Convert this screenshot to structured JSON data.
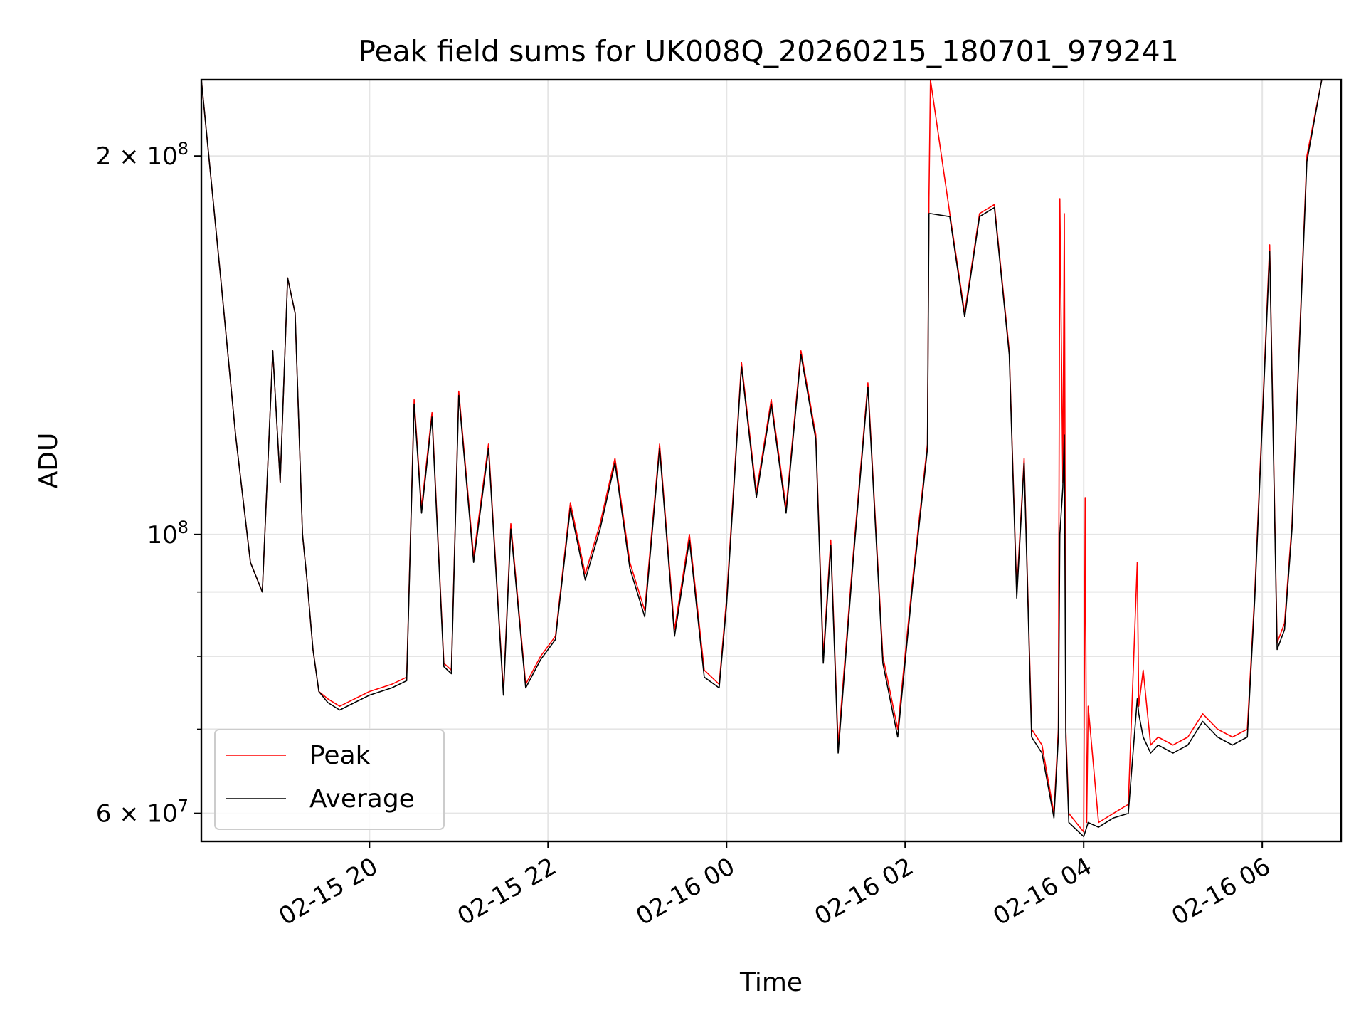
{
  "chart_data": {
    "type": "line",
    "title": "Peak field sums for UK008Q_20260215_180701_979241",
    "xlabel": "Time",
    "ylabel": "ADU",
    "y_scale": "log",
    "ylim": [
      57000000,
      230000000
    ],
    "xlim": [
      "2026-02-15 18:07",
      "2026-02-16 06:53"
    ],
    "grid": true,
    "legend_position": "lower-left",
    "x_ticks": [
      {
        "time": "2026-02-15 20:00",
        "label": "02-15 20"
      },
      {
        "time": "2026-02-15 22:00",
        "label": "02-15 22"
      },
      {
        "time": "2026-02-16 00:00",
        "label": "02-16 00"
      },
      {
        "time": "2026-02-16 02:00",
        "label": "02-16 02"
      },
      {
        "time": "2026-02-16 04:00",
        "label": "02-16 04"
      },
      {
        "time": "2026-02-16 06:00",
        "label": "02-16 06"
      }
    ],
    "y_ticks": [
      {
        "value": 60000000,
        "label": "6 × 10^7",
        "mantissa": "6",
        "exponent": "7"
      },
      {
        "value": 100000000,
        "label": "10^8",
        "mantissa": "",
        "exponent": "8"
      },
      {
        "value": 200000000,
        "label": "2 × 10^8",
        "mantissa": "2",
        "exponent": "8"
      }
    ],
    "y_minor_gridlines": [
      70000000,
      80000000,
      90000000
    ],
    "series": [
      {
        "name": "Peak",
        "color": "#ff0000",
        "time": [
          "2026-02-15 18:07",
          "2026-02-15 18:20",
          "2026-02-15 18:30",
          "2026-02-15 18:40",
          "2026-02-15 18:48",
          "2026-02-15 18:55",
          "2026-02-15 19:00",
          "2026-02-15 19:05",
          "2026-02-15 19:10",
          "2026-02-15 19:15",
          "2026-02-15 19:18",
          "2026-02-15 19:22",
          "2026-02-15 19:26",
          "2026-02-15 19:32",
          "2026-02-15 19:40",
          "2026-02-15 19:50",
          "2026-02-15 20:00",
          "2026-02-15 20:15",
          "2026-02-15 20:25",
          "2026-02-15 20:30",
          "2026-02-15 20:35",
          "2026-02-15 20:42",
          "2026-02-15 20:50",
          "2026-02-15 20:55",
          "2026-02-15 21:00",
          "2026-02-15 21:10",
          "2026-02-15 21:20",
          "2026-02-15 21:30",
          "2026-02-15 21:35",
          "2026-02-15 21:45",
          "2026-02-15 21:55",
          "2026-02-15 22:05",
          "2026-02-15 22:15",
          "2026-02-15 22:25",
          "2026-02-15 22:35",
          "2026-02-15 22:45",
          "2026-02-15 22:55",
          "2026-02-15 23:05",
          "2026-02-15 23:15",
          "2026-02-15 23:25",
          "2026-02-15 23:35",
          "2026-02-15 23:45",
          "2026-02-15 23:55",
          "2026-02-16 00:00",
          "2026-02-16 00:10",
          "2026-02-16 00:20",
          "2026-02-16 00:30",
          "2026-02-16 00:40",
          "2026-02-16 00:50",
          "2026-02-16 01:00",
          "2026-02-16 01:05",
          "2026-02-16 01:10",
          "2026-02-16 01:15",
          "2026-02-16 01:25",
          "2026-02-16 01:35",
          "2026-02-16 01:45",
          "2026-02-16 01:55",
          "2026-02-16 02:05",
          "2026-02-16 02:15",
          "2026-02-16 02:16",
          "2026-02-16 02:17",
          "2026-02-16 02:30",
          "2026-02-16 02:40",
          "2026-02-16 02:50",
          "2026-02-16 03:00",
          "2026-02-16 03:10",
          "2026-02-16 03:15",
          "2026-02-16 03:20",
          "2026-02-16 03:25",
          "2026-02-16 03:32",
          "2026-02-16 03:40",
          "2026-02-16 03:43",
          "2026-02-16 03:44",
          "2026-02-16 03:46",
          "2026-02-16 03:47",
          "2026-02-16 03:48",
          "2026-02-16 03:50",
          "2026-02-16 04:00",
          "2026-02-16 04:01",
          "2026-02-16 04:02",
          "2026-02-16 04:03",
          "2026-02-16 04:10",
          "2026-02-16 04:20",
          "2026-02-16 04:30",
          "2026-02-16 04:36",
          "2026-02-16 04:37",
          "2026-02-16 04:40",
          "2026-02-16 04:45",
          "2026-02-16 04:50",
          "2026-02-16 05:00",
          "2026-02-16 05:10",
          "2026-02-16 05:20",
          "2026-02-16 05:30",
          "2026-02-16 05:40",
          "2026-02-16 05:50",
          "2026-02-16 05:55",
          "2026-02-16 06:05",
          "2026-02-16 06:10",
          "2026-02-16 06:15",
          "2026-02-16 06:20",
          "2026-02-16 06:30",
          "2026-02-16 06:40",
          "2026-02-16 06:53"
        ],
        "values": [
          230000000,
          160000000,
          120000000,
          95000000,
          90000000,
          140000000,
          110000000,
          160000000,
          150000000,
          100000000,
          92000000,
          81000000,
          75000000,
          74000000,
          73000000,
          74000000,
          75000000,
          76000000,
          77000000,
          128000000,
          105000000,
          125000000,
          79000000,
          78000000,
          130000000,
          96000000,
          118000000,
          75000000,
          102000000,
          76000000,
          80000000,
          83000000,
          106000000,
          93000000,
          102000000,
          115000000,
          95000000,
          87000000,
          118000000,
          84000000,
          100000000,
          78000000,
          76000000,
          89000000,
          137000000,
          108000000,
          128000000,
          105000000,
          140000000,
          120000000,
          80000000,
          99000000,
          68000000,
          96000000,
          132000000,
          80000000,
          70000000,
          92000000,
          118000000,
          185000000,
          230000000,
          180000000,
          150000000,
          180000000,
          183000000,
          140000000,
          90000000,
          115000000,
          70000000,
          68000000,
          60000000,
          70000000,
          185000000,
          110000000,
          180000000,
          70000000,
          60000000,
          58000000,
          107000000,
          59000000,
          73000000,
          59000000,
          60000000,
          61000000,
          95000000,
          73000000,
          78000000,
          68000000,
          69000000,
          68000000,
          69000000,
          72000000,
          70000000,
          69000000,
          70000000,
          90000000,
          170000000,
          82000000,
          85000000,
          102000000,
          200000000,
          230000000,
          230000000
        ]
      },
      {
        "name": "Average",
        "color": "#000000",
        "time": [
          "2026-02-15 18:07",
          "2026-02-15 18:20",
          "2026-02-15 18:30",
          "2026-02-15 18:40",
          "2026-02-15 18:48",
          "2026-02-15 18:55",
          "2026-02-15 19:00",
          "2026-02-15 19:05",
          "2026-02-15 19:10",
          "2026-02-15 19:15",
          "2026-02-15 19:18",
          "2026-02-15 19:22",
          "2026-02-15 19:26",
          "2026-02-15 19:32",
          "2026-02-15 19:40",
          "2026-02-15 19:50",
          "2026-02-15 20:00",
          "2026-02-15 20:15",
          "2026-02-15 20:25",
          "2026-02-15 20:30",
          "2026-02-15 20:35",
          "2026-02-15 20:42",
          "2026-02-15 20:50",
          "2026-02-15 20:55",
          "2026-02-15 21:00",
          "2026-02-15 21:10",
          "2026-02-15 21:20",
          "2026-02-15 21:30",
          "2026-02-15 21:35",
          "2026-02-15 21:45",
          "2026-02-15 21:55",
          "2026-02-15 22:05",
          "2026-02-15 22:15",
          "2026-02-15 22:25",
          "2026-02-15 22:35",
          "2026-02-15 22:45",
          "2026-02-15 22:55",
          "2026-02-15 23:05",
          "2026-02-15 23:15",
          "2026-02-15 23:25",
          "2026-02-15 23:35",
          "2026-02-15 23:45",
          "2026-02-15 23:55",
          "2026-02-16 00:00",
          "2026-02-16 00:10",
          "2026-02-16 00:20",
          "2026-02-16 00:30",
          "2026-02-16 00:40",
          "2026-02-16 00:50",
          "2026-02-16 01:00",
          "2026-02-16 01:05",
          "2026-02-16 01:10",
          "2026-02-16 01:15",
          "2026-02-16 01:25",
          "2026-02-16 01:35",
          "2026-02-16 01:45",
          "2026-02-16 01:55",
          "2026-02-16 02:05",
          "2026-02-16 02:15",
          "2026-02-16 02:16",
          "2026-02-16 02:17",
          "2026-02-16 02:30",
          "2026-02-16 02:40",
          "2026-02-16 02:50",
          "2026-02-16 03:00",
          "2026-02-16 03:10",
          "2026-02-16 03:15",
          "2026-02-16 03:20",
          "2026-02-16 03:25",
          "2026-02-16 03:32",
          "2026-02-16 03:40",
          "2026-02-16 03:43",
          "2026-02-16 03:44",
          "2026-02-16 03:46",
          "2026-02-16 03:47",
          "2026-02-16 03:48",
          "2026-02-16 03:50",
          "2026-02-16 04:00",
          "2026-02-16 04:01",
          "2026-02-16 04:02",
          "2026-02-16 04:03",
          "2026-02-16 04:10",
          "2026-02-16 04:20",
          "2026-02-16 04:30",
          "2026-02-16 04:36",
          "2026-02-16 04:37",
          "2026-02-16 04:40",
          "2026-02-16 04:45",
          "2026-02-16 04:50",
          "2026-02-16 05:00",
          "2026-02-16 05:10",
          "2026-02-16 05:20",
          "2026-02-16 05:30",
          "2026-02-16 05:40",
          "2026-02-16 05:50",
          "2026-02-16 05:55",
          "2026-02-16 06:05",
          "2026-02-16 06:10",
          "2026-02-16 06:15",
          "2026-02-16 06:20",
          "2026-02-16 06:30",
          "2026-02-16 06:40",
          "2026-02-16 06:53"
        ],
        "values": [
          230000000,
          160000000,
          120000000,
          95000000,
          90000000,
          140000000,
          110000000,
          160000000,
          150000000,
          100000000,
          92000000,
          81000000,
          75000000,
          73500000,
          72500000,
          73500000,
          74500000,
          75500000,
          76500000,
          127000000,
          104000000,
          124000000,
          78500000,
          77500000,
          129000000,
          95000000,
          117000000,
          74500000,
          101000000,
          75500000,
          79500000,
          82500000,
          105000000,
          92000000,
          101000000,
          114000000,
          94000000,
          86000000,
          117000000,
          83000000,
          99000000,
          77000000,
          75500000,
          88000000,
          136000000,
          107000000,
          127000000,
          104000000,
          139000000,
          119000000,
          79000000,
          98000000,
          67000000,
          95000000,
          131000000,
          79000000,
          69000000,
          91000000,
          117000000,
          180000000,
          180000000,
          179000000,
          149000000,
          179000000,
          182000000,
          139000000,
          89000000,
          114000000,
          69000000,
          67000000,
          59500000,
          69000000,
          100000000,
          109000000,
          120000000,
          69000000,
          59000000,
          57500000,
          58000000,
          58500000,
          59000000,
          58500000,
          59500000,
          60000000,
          74000000,
          72000000,
          69000000,
          67000000,
          68000000,
          67000000,
          68000000,
          71000000,
          69000000,
          68000000,
          69000000,
          89000000,
          168000000,
          81000000,
          84000000,
          101000000,
          198000000,
          230000000,
          230000000
        ]
      }
    ]
  }
}
